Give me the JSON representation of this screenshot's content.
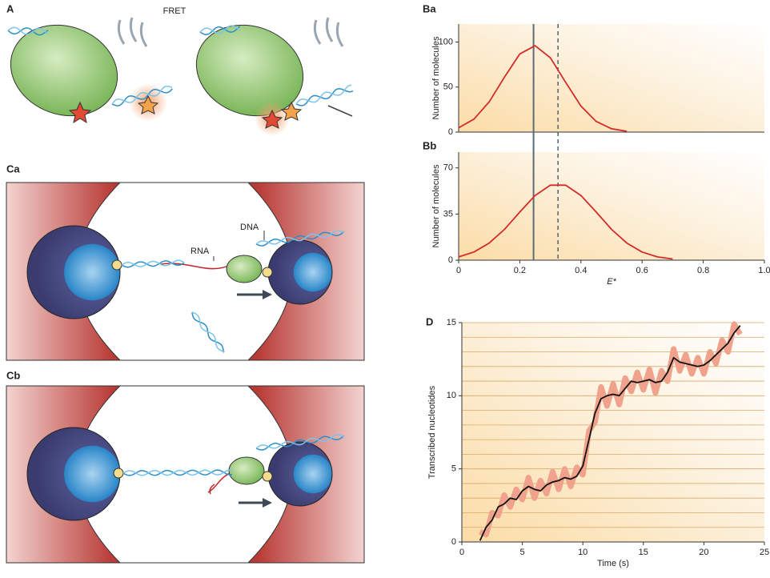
{
  "figure": {
    "panel_a": "A",
    "fret": "FRET",
    "panel_ca": "Ca",
    "panel_cb": "Cb",
    "rna": "RNA",
    "dna": "DNA"
  },
  "chart_data": [
    {
      "type": "line",
      "panel_label": "Ba",
      "ylabel": "Number of molecules",
      "x": [
        0,
        0.05,
        0.1,
        0.15,
        0.2,
        0.25,
        0.3,
        0.35,
        0.4,
        0.45,
        0.5,
        0.55
      ],
      "series": [
        {
          "color": "#d42a2a",
          "values": [
            4.8,
            14.4,
            33.6,
            61.1,
            86.8,
            95.9,
            82.5,
            55.3,
            28.9,
            11.8,
            3.7,
            0.9
          ]
        }
      ],
      "xlim": [
        0,
        1
      ],
      "ylim": [
        0,
        120
      ],
      "yticks": [
        0,
        50,
        100
      ],
      "vlines": [
        {
          "value": 0.245,
          "style": "solid"
        },
        {
          "value": 0.325,
          "style": "dashed"
        }
      ]
    },
    {
      "type": "line",
      "panel_label": "Bb",
      "ylabel": "Number of molecules",
      "xlabel": "E*",
      "x": [
        0,
        0.05,
        0.1,
        0.15,
        0.2,
        0.25,
        0.3,
        0.35,
        0.4,
        0.45,
        0.5,
        0.55,
        0.6,
        0.65,
        0.7
      ],
      "series": [
        {
          "color": "#d42a2a",
          "values": [
            2.5,
            6.2,
            13.0,
            23.4,
            36.5,
            49.1,
            56.9,
            56.9,
            49.1,
            36.5,
            23.4,
            13.0,
            6.2,
            2.5,
            0.9
          ]
        }
      ],
      "xlim": [
        0,
        1
      ],
      "ylim": [
        0,
        82
      ],
      "yticks": [
        0,
        35,
        70
      ],
      "xticks": [
        0,
        0.2,
        0.4,
        0.6,
        0.8,
        {
          "value": 1,
          "label": "1.0"
        }
      ],
      "vlines": [
        {
          "value": 0.245,
          "style": "solid"
        },
        {
          "value": 0.325,
          "style": "dashed"
        }
      ]
    },
    {
      "type": "line",
      "panel_label": "D",
      "ylabel": "Transcribed nucleotides",
      "xlabel": "Time (s)",
      "x": [
        1.5,
        2,
        2.5,
        3,
        3.5,
        4,
        4.5,
        5,
        5.5,
        6,
        6.5,
        7,
        7.5,
        8,
        8.5,
        9,
        9.5,
        10,
        10.5,
        11,
        11.5,
        12,
        12.5,
        13,
        13.5,
        14,
        14.5,
        15,
        15.5,
        16,
        16.5,
        17,
        17.5,
        18,
        18.5,
        19,
        19.5,
        20,
        20.5,
        21,
        21.5,
        22,
        22.5,
        23
      ],
      "series": [
        {
          "color": "#f0a28c",
          "values": [
            0.7,
            0.5,
            2.0,
            1.8,
            3.2,
            2.4,
            3.6,
            2.9,
            4.4,
            3.0,
            4.2,
            3.3,
            4.8,
            3.6,
            5.0,
            3.8,
            5.1,
            4.6,
            7.6,
            8.2,
            10.6,
            9.3,
            10.8,
            9.4,
            11.2,
            10.3,
            11.6,
            10.4,
            11.8,
            10.2,
            11.7,
            11.0,
            13.2,
            11.7,
            12.8,
            11.5,
            12.6,
            11.5,
            13.0,
            12.2,
            13.8,
            13.0,
            14.9,
            14.2
          ]
        },
        {
          "color": "#111111",
          "values": [
            0.1,
            1.0,
            1.5,
            2.4,
            2.6,
            3.0,
            2.9,
            3.5,
            3.8,
            3.6,
            3.5,
            3.9,
            4.1,
            4.2,
            4.4,
            4.3,
            4.5,
            5.2,
            7.0,
            8.8,
            9.8,
            10.0,
            10.1,
            10.0,
            10.5,
            11.0,
            10.9,
            11.0,
            11.1,
            10.9,
            11.0,
            11.6,
            12.6,
            12.3,
            12.2,
            12.1,
            12.0,
            12.1,
            12.4,
            12.8,
            13.2,
            13.6,
            14.3,
            14.8
          ]
        }
      ],
      "xlim": [
        0,
        25
      ],
      "ylim": [
        0,
        15
      ],
      "xticks": [
        0,
        5,
        10,
        15,
        20,
        25
      ],
      "yticks": [
        0,
        5,
        10,
        15
      ],
      "grid_lines": [
        1,
        2,
        3,
        4,
        5,
        6,
        7,
        8,
        9,
        10,
        11,
        12,
        13,
        14,
        15
      ]
    }
  ]
}
